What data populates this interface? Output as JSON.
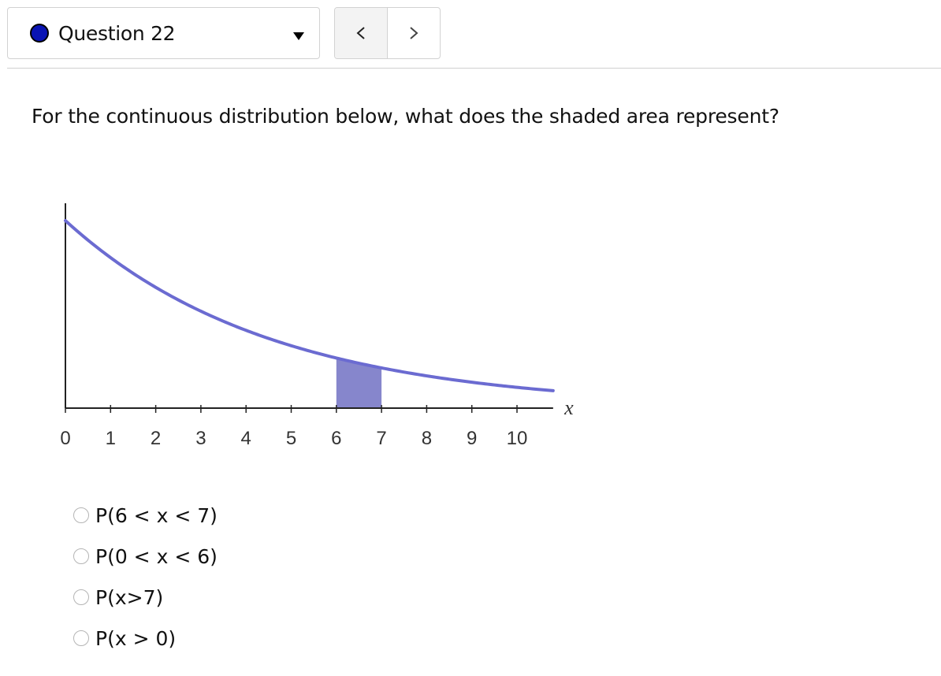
{
  "question_nav": {
    "label": "Question 22",
    "status_color": "#0a14b4",
    "dropdown_icon": "caret-down-icon",
    "prev_icon": "chevron-left-icon",
    "next_icon": "chevron-right-icon"
  },
  "question": {
    "prompt": "For the continuous distribution below, what does the shaded area represent?"
  },
  "chart_data": {
    "type": "area",
    "xlabel": "x",
    "ylabel": "",
    "title": "",
    "xlim": [
      0,
      10.8
    ],
    "x_ticks": [
      "0",
      "1",
      "2",
      "3",
      "4",
      "5",
      "6",
      "7",
      "8",
      "9",
      "10"
    ],
    "curve": "decreasing exponential density",
    "rate": 0.22,
    "shaded_interval": [
      6,
      7
    ],
    "curve_color": "#6b6bd1",
    "shade_color": "#8686cc",
    "grid": false
  },
  "answers": [
    {
      "label": "P(6 < x < 7)"
    },
    {
      "label": "P(0 < x < 6)"
    },
    {
      "label": "P(x>7)"
    },
    {
      "label": "P(x > 0)"
    }
  ]
}
